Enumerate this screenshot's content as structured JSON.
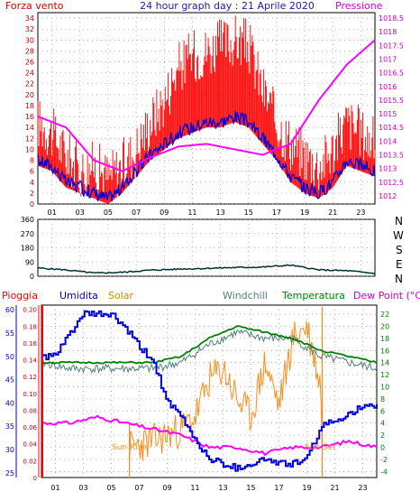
{
  "header": {
    "left_label": "Forza vento",
    "title": "24 hour graph day : 21 Aprile 2020",
    "right_label": "Pressione"
  },
  "middle": {
    "right_labels": [
      "N",
      "W",
      "S",
      "E",
      "N"
    ]
  },
  "bottom_labels": {
    "pioggia": "Pioggia",
    "umidita": "Umidita",
    "solar": "Solar",
    "windchill": "Windchill",
    "temperatura": "Temperatura",
    "dewpoint": "Dew Point (°C)",
    "sunrise": "Sun Rise",
    "sunset": "Sun Set"
  },
  "colors": {
    "wind_gust": "#ff0000",
    "wind_avg": "#0000dd",
    "pressure": "#ff00ff",
    "direction": "#003030",
    "umidita": "#0000dd",
    "solar": "#ff8c1a",
    "windchill": "#4f7f7f",
    "temperatura": "#008000",
    "dewpoint": "#ff00ff",
    "rain": "#ff0000",
    "axis_left": "#cc0000",
    "axis_right": "#cc00cc",
    "axis_green": "#008000"
  },
  "chart_data": [
    {
      "type": "line",
      "name": "wind-pressure",
      "x_ticks": [
        "01",
        "03",
        "05",
        "07",
        "09",
        "11",
        "13",
        "15",
        "17",
        "19",
        "21",
        "23"
      ],
      "y_left_ticks": [
        0,
        2,
        4,
        6,
        8,
        10,
        12,
        14,
        16,
        18,
        20,
        22,
        24,
        26,
        28,
        30,
        32,
        34
      ],
      "y_right_ticks": [
        1012,
        1012.5,
        1013,
        1013.5,
        1014,
        1014.5,
        1015,
        1015.5,
        1016,
        1016.5,
        1017,
        1017.5,
        1018,
        1018.5
      ],
      "ylim_left": [
        0,
        35
      ],
      "ylim_right": [
        1011.7,
        1018.7
      ],
      "series": [
        {
          "name": "Forza vento",
          "hours": [
            0,
            1,
            2,
            3,
            4,
            5,
            6,
            7,
            8,
            9,
            10,
            11,
            12,
            13,
            14,
            15,
            16,
            17,
            18,
            19,
            20,
            21,
            22,
            23,
            24
          ],
          "values": [
            14,
            12,
            8,
            5,
            6,
            4,
            6,
            9,
            14,
            18,
            24,
            26,
            27,
            28,
            29,
            28,
            20,
            14,
            10,
            8,
            6,
            9,
            14,
            12,
            10
          ]
        },
        {
          "name": "Media",
          "hours": [
            0,
            1,
            2,
            3,
            4,
            5,
            6,
            7,
            8,
            9,
            10,
            11,
            12,
            13,
            14,
            15,
            16,
            17,
            18,
            19,
            20,
            21,
            22,
            23,
            24
          ],
          "values": [
            8,
            7,
            4,
            3,
            2,
            1,
            3,
            6,
            9,
            11,
            13,
            14,
            15,
            15,
            16,
            15,
            12,
            9,
            5,
            3,
            2,
            4,
            8,
            7,
            6
          ]
        },
        {
          "name": "Pressione",
          "hours": [
            0,
            2,
            4,
            6,
            8,
            10,
            12,
            14,
            16,
            18,
            20,
            22,
            24
          ],
          "values": [
            1014.9,
            1014.5,
            1013.3,
            1012.9,
            1013.4,
            1013.8,
            1013.9,
            1013.7,
            1013.5,
            1013.9,
            1015.5,
            1016.8,
            1017.7
          ]
        }
      ]
    },
    {
      "type": "line",
      "name": "wind-direction",
      "x_ticks": [
        "01",
        "03",
        "05",
        "07",
        "09",
        "11",
        "13",
        "15",
        "17",
        "19",
        "21",
        "23"
      ],
      "y_ticks": [
        0,
        90,
        180,
        270,
        360
      ],
      "ylim": [
        0,
        360
      ],
      "series": [
        {
          "name": "Direzione",
          "hours": [
            0,
            2,
            4,
            6,
            8,
            10,
            12,
            14,
            16,
            18,
            20,
            22,
            24
          ],
          "values": [
            52,
            40,
            20,
            25,
            38,
            45,
            50,
            55,
            58,
            70,
            40,
            35,
            18
          ]
        }
      ]
    },
    {
      "type": "line",
      "name": "humidity-temperature",
      "x_ticks": [
        "01",
        "03",
        "05",
        "07",
        "09",
        "11",
        "13",
        "15",
        "17",
        "19",
        "21",
        "23"
      ],
      "y_rain_ticks": [
        0,
        0.02,
        0.04,
        0.06,
        0.08,
        0.1,
        0.12,
        0.14,
        0.16,
        0.18,
        0.2
      ],
      "y_humidity_ticks": [
        25,
        30,
        35,
        40,
        45,
        50,
        55,
        60
      ],
      "y_temp_ticks": [
        -4,
        -2,
        0,
        2,
        4,
        6,
        8,
        10,
        12,
        14,
        16,
        18,
        20,
        22
      ],
      "series": [
        {
          "name": "Umidita",
          "hours": [
            0,
            1,
            2,
            3,
            4,
            5,
            6,
            7,
            8,
            9,
            10,
            11,
            12,
            13,
            14,
            15,
            16,
            17,
            18,
            19,
            20,
            21,
            22,
            23,
            24
          ],
          "values": [
            50,
            50,
            55,
            59,
            59,
            59,
            56,
            52,
            49,
            40,
            37,
            32,
            28,
            27,
            26,
            27,
            28,
            27,
            27,
            28,
            35,
            36,
            38,
            39,
            39
          ]
        },
        {
          "name": "Temperatura",
          "hours": [
            0,
            2,
            4,
            6,
            8,
            10,
            12,
            14,
            16,
            18,
            20,
            22,
            24
          ],
          "values": [
            14,
            14,
            14,
            14,
            14,
            15,
            18,
            20,
            19,
            18,
            16,
            15,
            14
          ]
        },
        {
          "name": "Windchill",
          "hours": [
            0,
            2,
            4,
            6,
            8,
            10,
            12,
            14,
            16,
            18,
            20,
            22,
            24
          ],
          "values": [
            14,
            13,
            13,
            13,
            13,
            14,
            17,
            19,
            18,
            18,
            15,
            14,
            13
          ]
        },
        {
          "name": "Dew Point",
          "hours": [
            0,
            2,
            4,
            6,
            8,
            10,
            12,
            14,
            16,
            18,
            20,
            22,
            24
          ],
          "values": [
            4,
            4,
            5,
            4,
            3,
            2,
            0,
            0,
            -1,
            0,
            0,
            1,
            0
          ]
        },
        {
          "name": "Solar",
          "hours": [
            6.3,
            8,
            9,
            10,
            11,
            12,
            13,
            14,
            15,
            16,
            17,
            18,
            19,
            20,
            20.1
          ],
          "values": [
            0,
            1,
            2,
            3,
            5,
            11,
            13,
            8,
            5,
            14,
            7,
            18,
            20,
            10,
            0
          ]
        }
      ],
      "markers": {
        "sunrise_hour": 6.3,
        "sunset_hour": 20.1
      }
    }
  ]
}
